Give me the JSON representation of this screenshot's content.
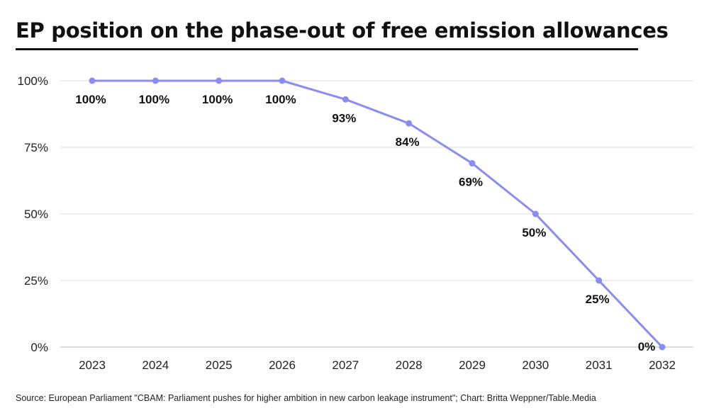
{
  "title": "EP position on the phase-out of free emission allowances",
  "source": "Source: European Parliament \"CBAM: Parliament pushes for higher ambition in new carbon leakage instrument\"; Chart: Britta Weppner/Table.Media",
  "colors": {
    "line": "#8a8cf2",
    "grid": "#dddddd",
    "text": "#111111"
  },
  "chart_data": {
    "type": "line",
    "title": "EP position on the phase-out of free emission allowances",
    "xlabel": "",
    "ylabel": "",
    "x": [
      "2023",
      "2024",
      "2025",
      "2026",
      "2027",
      "2028",
      "2029",
      "2030",
      "2031",
      "2032"
    ],
    "series": [
      {
        "values": [
          100,
          100,
          100,
          100,
          93,
          84,
          69,
          50,
          25,
          0
        ]
      }
    ],
    "data_labels": [
      "100%",
      "100%",
      "100%",
      "100%",
      "93%",
      "84%",
      "69%",
      "50%",
      "25%",
      "0%"
    ],
    "ylim": [
      0,
      100
    ],
    "yticks": [
      0,
      25,
      50,
      75,
      100
    ],
    "ytick_labels": [
      "0%",
      "25%",
      "50%",
      "75%",
      "100%"
    ],
    "grid": true,
    "legend": "none"
  }
}
